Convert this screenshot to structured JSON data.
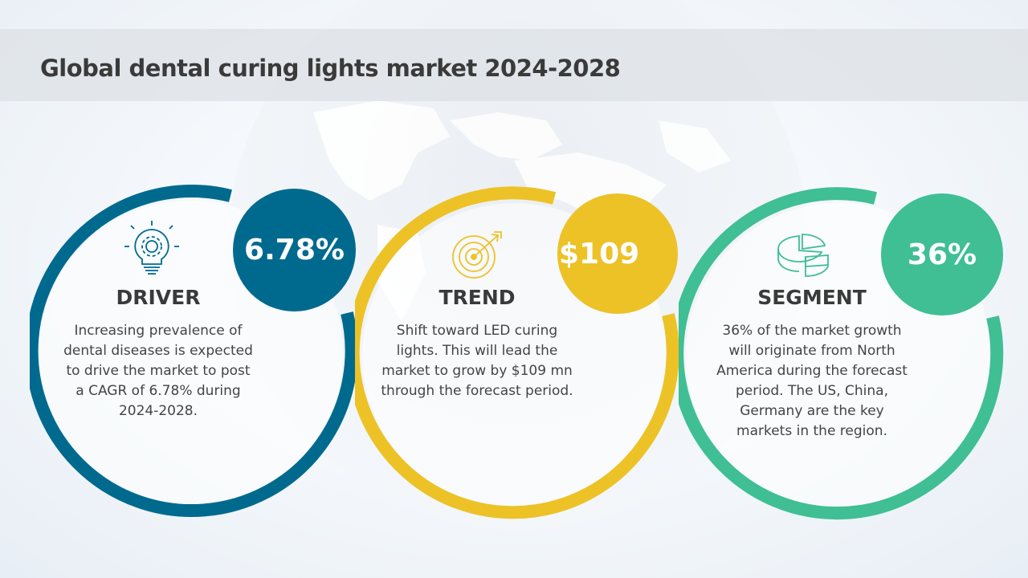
{
  "title": "Global dental curing lights market 2024-2028",
  "colors": {
    "driver": "#006a8e",
    "trend": "#ecc227",
    "segment": "#3fbf93",
    "title_band": "#dcdfe3",
    "text": "#3a3a3a"
  },
  "cards": [
    {
      "heading": "DRIVER",
      "value": "6.78%",
      "icon": "lightbulb-gear-icon",
      "text": "Increasing prevalence of dental diseases is expected to drive the market to post a CAGR of 6.78% during 2024-2028."
    },
    {
      "heading": "TREND",
      "value": "$109",
      "icon": "target-arrow-icon",
      "text": "Shift toward LED curing lights. This will lead the market to grow by $109 mn through the forecast period."
    },
    {
      "heading": "SEGMENT",
      "value": "36%",
      "icon": "pie-chart-icon",
      "text": "36% of the market growth will originate from North America during the forecast period. The US, China, Germany are the key markets in the region."
    }
  ]
}
